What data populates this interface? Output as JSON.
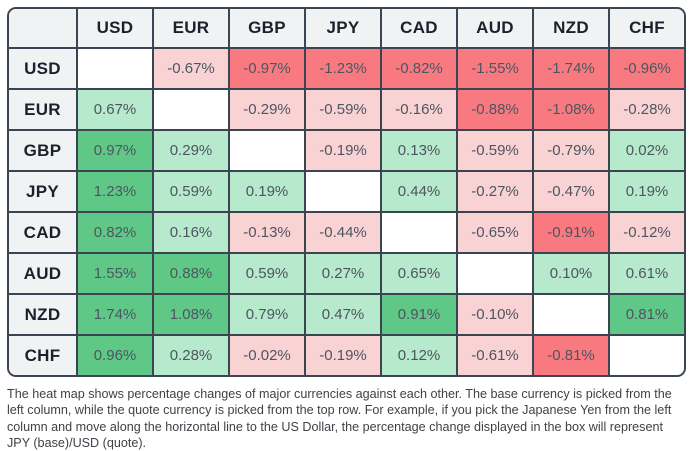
{
  "chart_data": {
    "type": "heatmap",
    "description": "Currency strength heat map: percentage change of base currency (left column) vs quote currency (top row)",
    "unit": "%",
    "currencies": [
      "USD",
      "EUR",
      "GBP",
      "JPY",
      "CAD",
      "AUD",
      "NZD",
      "CHF"
    ],
    "matrix": [
      [
        null,
        -0.67,
        -0.97,
        -1.23,
        -0.82,
        -1.55,
        -1.74,
        -0.96
      ],
      [
        0.67,
        null,
        -0.29,
        -0.59,
        -0.16,
        -0.88,
        -1.08,
        -0.28
      ],
      [
        0.97,
        0.29,
        null,
        -0.19,
        0.13,
        -0.59,
        -0.79,
        0.02
      ],
      [
        1.23,
        0.59,
        0.19,
        null,
        0.44,
        -0.27,
        -0.47,
        0.19
      ],
      [
        0.82,
        0.16,
        -0.13,
        -0.44,
        null,
        -0.65,
        -0.91,
        -0.12
      ],
      [
        1.55,
        0.88,
        0.59,
        0.27,
        0.65,
        null,
        0.1,
        0.61
      ],
      [
        1.74,
        1.08,
        0.79,
        0.47,
        0.91,
        -0.1,
        null,
        0.81
      ],
      [
        0.96,
        0.28,
        -0.02,
        -0.19,
        0.12,
        -0.61,
        -0.81,
        null
      ]
    ],
    "color_scale": {
      "positive_strong": "#5fc887",
      "positive_light": "#b7e9cc",
      "negative_light": "#f9d3d4",
      "negative_strong": "#f87a80",
      "strong_threshold": 0.8,
      "empty_cell": "#ffffff"
    },
    "layout": {
      "header_background": "#f1f2f4",
      "border_color": "#3b4551",
      "value_text_color": "#4e5560",
      "header_text_color": "#1b212b"
    }
  },
  "caption": {
    "text": "The heat map shows percentage changes of major currencies against each other. The base currency is picked from the left column, while the quote currency is picked from the top row. For example, if you pick the Japanese Yen from the left column and move along the horizontal line to the US Dollar, the percentage change displayed in the box will represent JPY (base)/USD (quote)."
  }
}
